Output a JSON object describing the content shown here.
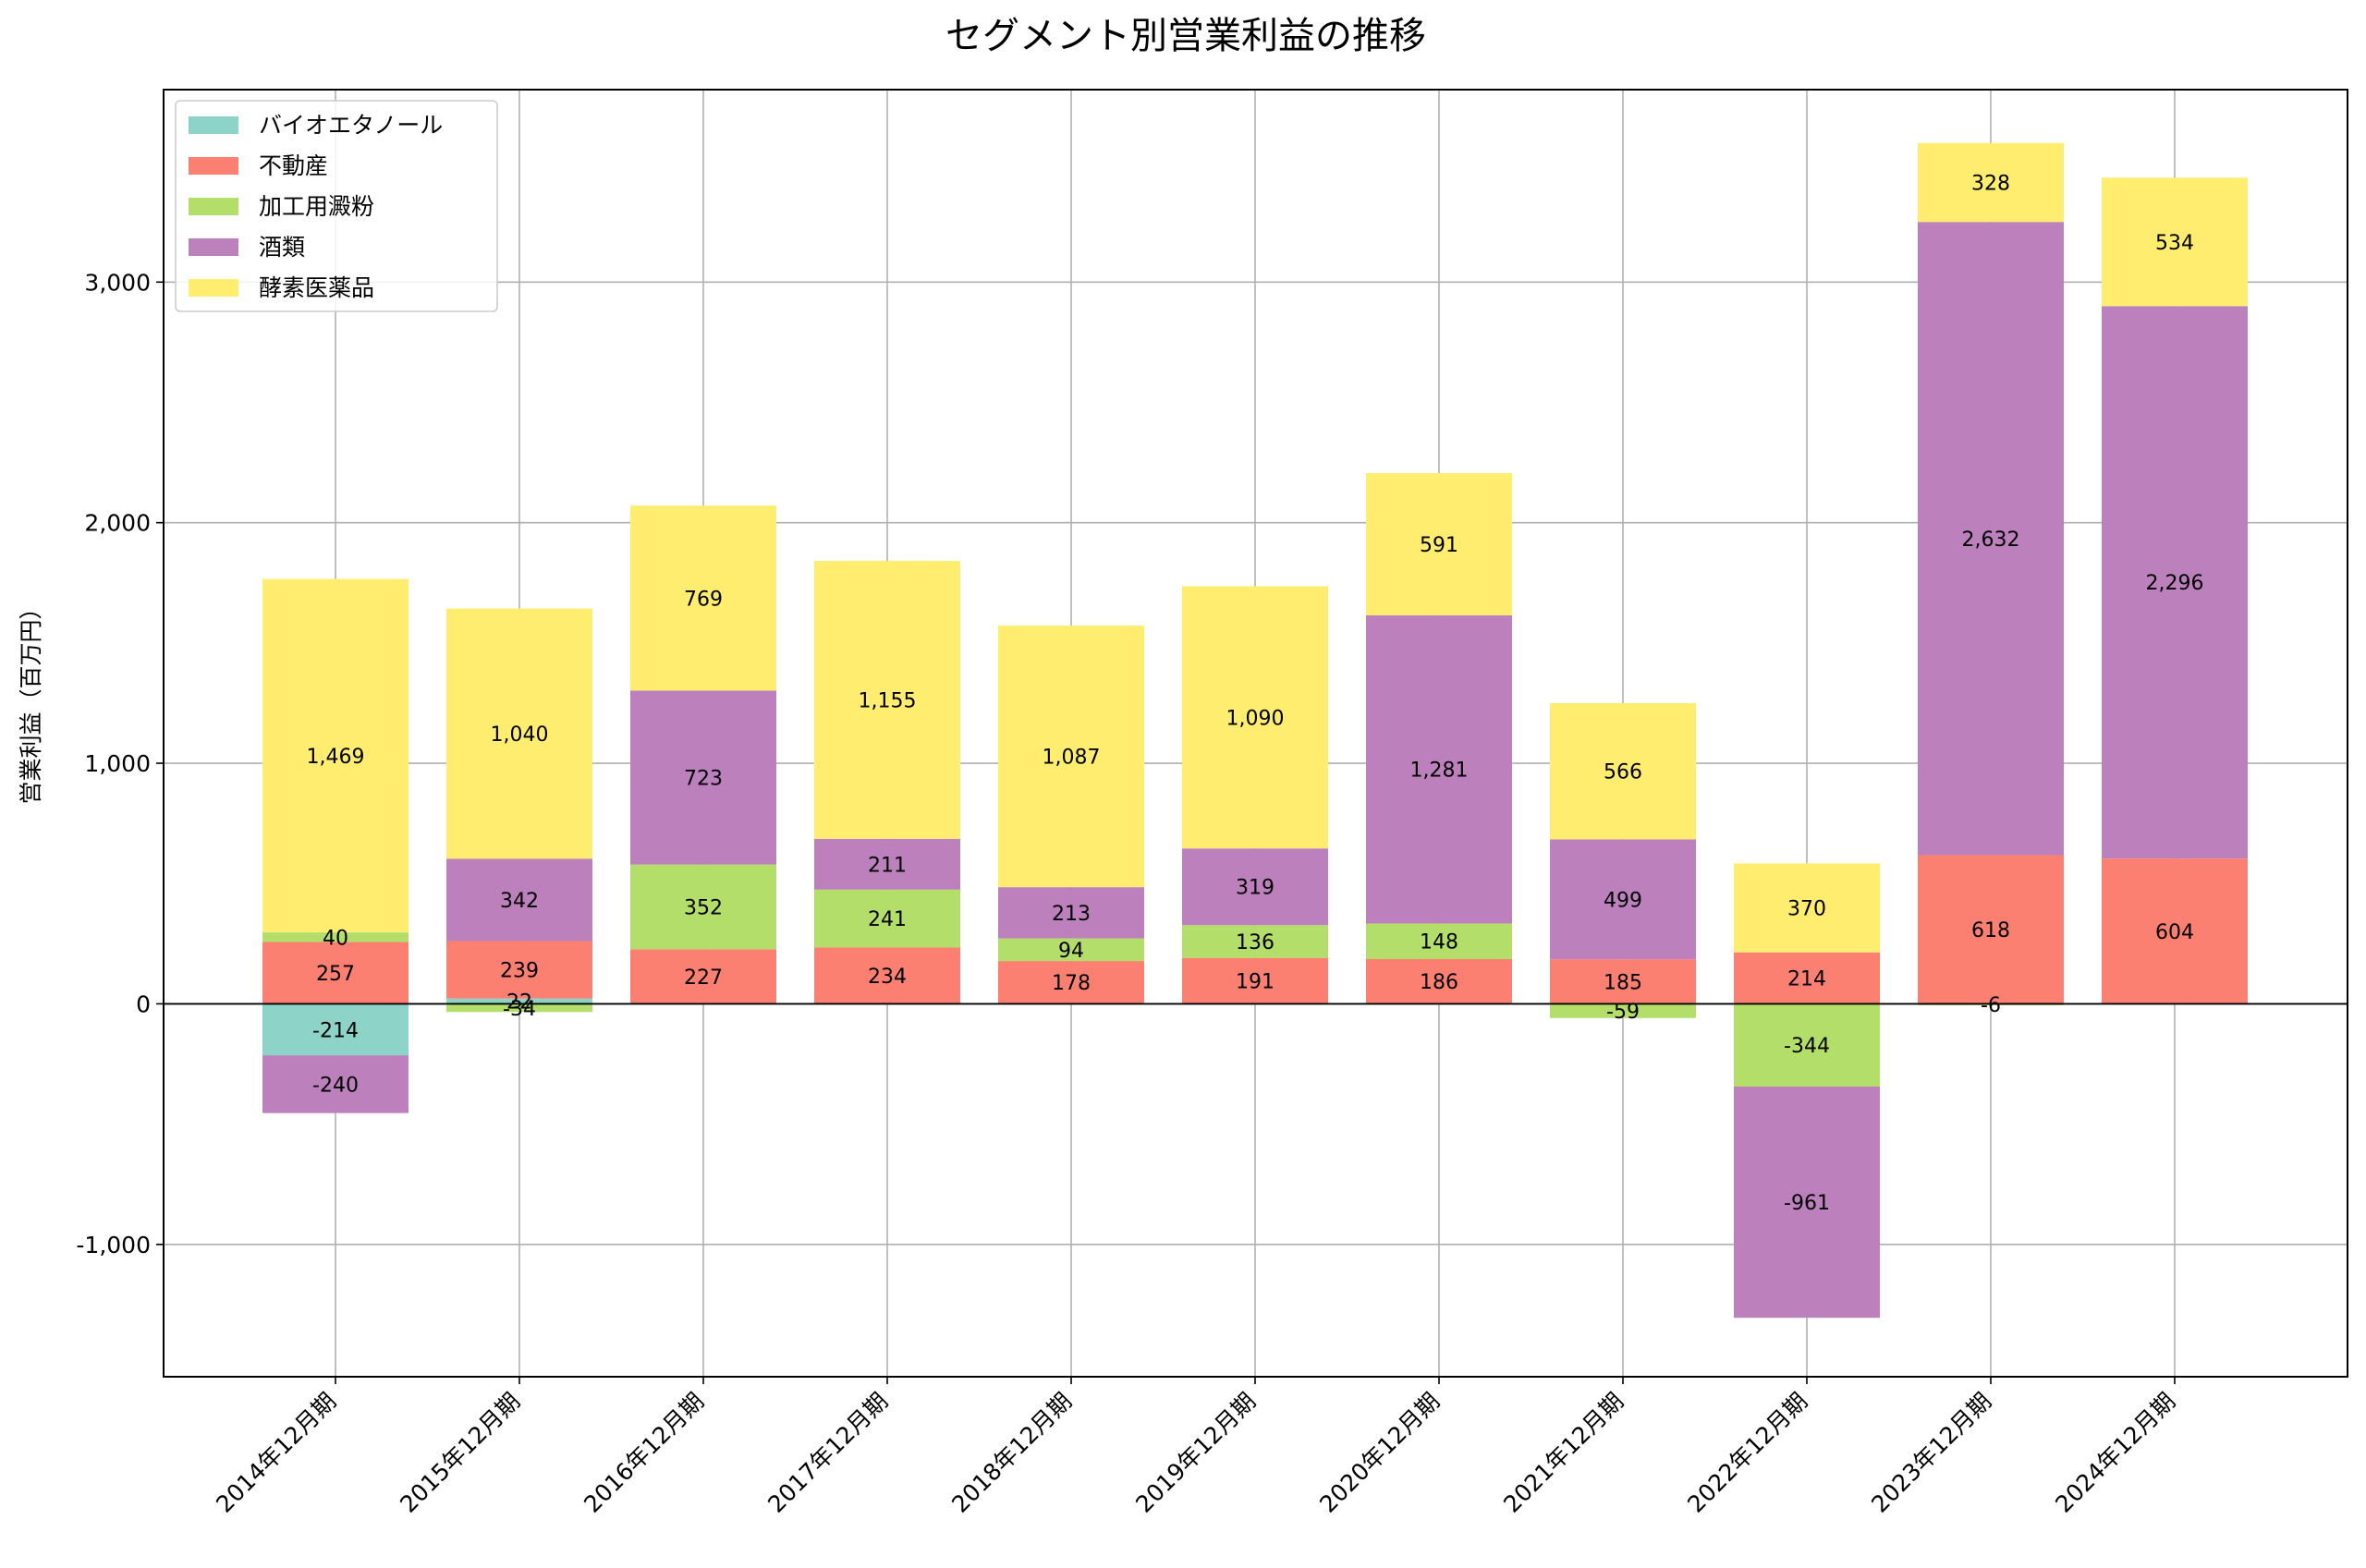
{
  "chart_data": {
    "type": "bar",
    "stacked": true,
    "title": "セグメント別営業利益の推移",
    "xlabel": "",
    "ylabel": "営業利益（百万円）",
    "ylim": [
      -1550,
      3800
    ],
    "yticks": [
      -1000,
      0,
      1000,
      2000,
      3000
    ],
    "ytick_labels": [
      "-1,000",
      "0",
      "1,000",
      "2,000",
      "3,000"
    ],
    "grid": true,
    "legend_position": "top-left",
    "categories": [
      "2014年12月期",
      "2015年12月期",
      "2016年12月期",
      "2017年12月期",
      "2018年12月期",
      "2019年12月期",
      "2020年12月期",
      "2021年12月期",
      "2022年12月期",
      "2023年12月期",
      "2024年12月期"
    ],
    "series": [
      {
        "name": "バイオエタノール",
        "color": "#8dd3c7",
        "values": [
          -214,
          22,
          0,
          0,
          0,
          0,
          0,
          0,
          0,
          0,
          0
        ]
      },
      {
        "name": "不動産",
        "color": "#fb8072",
        "values": [
          257,
          239,
          227,
          234,
          178,
          191,
          186,
          185,
          214,
          618,
          604
        ]
      },
      {
        "name": "加工用澱粉",
        "color": "#b3de69",
        "values": [
          40,
          -34,
          352,
          241,
          94,
          136,
          148,
          -59,
          -344,
          -6,
          0
        ]
      },
      {
        "name": "酒類",
        "color": "#bc80bd",
        "values": [
          -240,
          342,
          723,
          211,
          213,
          319,
          1281,
          499,
          -961,
          2632,
          2296
        ]
      },
      {
        "name": "酵素医薬品",
        "color": "#ffed6f",
        "values": [
          1469,
          1040,
          769,
          1155,
          1087,
          1090,
          591,
          566,
          370,
          328,
          534
        ]
      }
    ],
    "data_labels": [
      [
        "-214",
        "22",
        "",
        "",
        "",
        "",
        "",
        "",
        "",
        "",
        ""
      ],
      [
        "257",
        "239",
        "227",
        "234",
        "178",
        "191",
        "186",
        "185",
        "214",
        "618",
        "604"
      ],
      [
        "40",
        "-34",
        "352",
        "241",
        "94",
        "136",
        "148",
        "-59",
        "-344",
        "-6",
        ""
      ],
      [
        "-240",
        "342",
        "723",
        "211",
        "213",
        "319",
        "1,281",
        "499",
        "-961",
        "2,632",
        "2,296"
      ],
      [
        "1,469",
        "1,040",
        "769",
        "1,155",
        "1,087",
        "1,090",
        "591",
        "566",
        "370",
        "328",
        "534"
      ]
    ]
  }
}
